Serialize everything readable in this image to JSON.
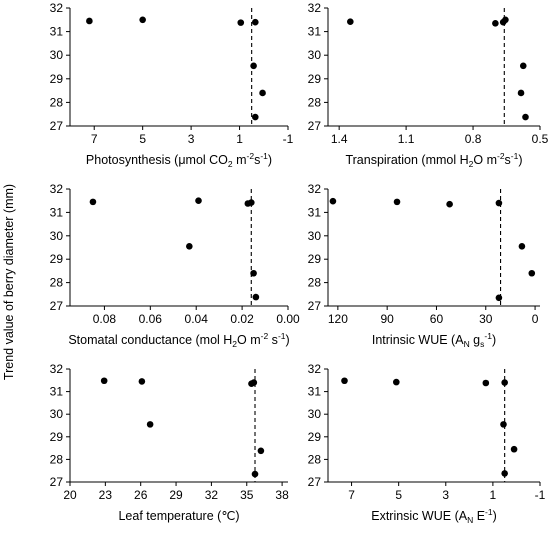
{
  "figure": {
    "ylabel": "Trend value of berry diameter (mm)"
  },
  "chart_data": [
    {
      "type": "scatter",
      "xlabel_parts": [
        [
          "Photosynthesis (μmol CO",
          ""
        ],
        [
          "2",
          "sub"
        ],
        [
          " m",
          ""
        ],
        [
          "-2",
          "sup"
        ],
        [
          "s",
          ""
        ],
        [
          "-1",
          "sup"
        ],
        [
          ")",
          ""
        ]
      ],
      "xticks": [
        "7",
        "5",
        "3",
        "1",
        "-1"
      ],
      "xlim": [
        8,
        -1
      ],
      "xtick_values": [
        7,
        5,
        3,
        1,
        -1
      ],
      "ylim": [
        27,
        32
      ],
      "yticks": [
        "27",
        "28",
        "29",
        "30",
        "31",
        "32"
      ],
      "dashed_x": 0.5,
      "points": [
        {
          "x": 7.2,
          "y": 31.45
        },
        {
          "x": 5.0,
          "y": 31.5
        },
        {
          "x": 0.95,
          "y": 31.38
        },
        {
          "x": 0.35,
          "y": 31.4
        },
        {
          "x": 0.42,
          "y": 29.55
        },
        {
          "x": 0.05,
          "y": 28.4
        },
        {
          "x": 0.35,
          "y": 27.38
        }
      ]
    },
    {
      "type": "scatter",
      "xlabel_parts": [
        [
          "Transpiration (mmol H",
          ""
        ],
        [
          "2",
          "sub"
        ],
        [
          "O m",
          ""
        ],
        [
          "-2",
          "sup"
        ],
        [
          "s",
          ""
        ],
        [
          "-1",
          "sup"
        ],
        [
          ")",
          ""
        ]
      ],
      "xticks": [
        "1.4",
        "1.1",
        "0.8",
        "0.5"
      ],
      "xlim": [
        1.45,
        0.5
      ],
      "xtick_values": [
        1.4,
        1.1,
        0.8,
        0.5
      ],
      "ylim": [
        27,
        32
      ],
      "yticks": [
        "27",
        "28",
        "29",
        "30",
        "31",
        "32"
      ],
      "dashed_x": 0.66,
      "points": [
        {
          "x": 1.35,
          "y": 31.42
        },
        {
          "x": 0.7,
          "y": 31.35
        },
        {
          "x": 0.665,
          "y": 31.4
        },
        {
          "x": 0.655,
          "y": 31.5
        },
        {
          "x": 0.575,
          "y": 29.55
        },
        {
          "x": 0.585,
          "y": 28.4
        },
        {
          "x": 0.565,
          "y": 27.38
        }
      ]
    },
    {
      "type": "scatter",
      "xlabel_parts": [
        [
          "Stomatal conductance (mol H",
          ""
        ],
        [
          "2",
          "sub"
        ],
        [
          "O m",
          ""
        ],
        [
          "-2",
          "sup"
        ],
        [
          " s",
          ""
        ],
        [
          "-1",
          "sup"
        ],
        [
          ")",
          ""
        ]
      ],
      "xticks": [
        "0.08",
        "0.06",
        "0.04",
        "0.02",
        "0.00"
      ],
      "xlim": [
        0.095,
        0.0
      ],
      "xtick_values": [
        0.08,
        0.06,
        0.04,
        0.02,
        0.0
      ],
      "ylim": [
        27,
        32
      ],
      "yticks": [
        "27",
        "28",
        "29",
        "30",
        "31",
        "32"
      ],
      "dashed_x": 0.016,
      "points": [
        {
          "x": 0.085,
          "y": 31.45
        },
        {
          "x": 0.039,
          "y": 31.5
        },
        {
          "x": 0.0175,
          "y": 31.38
        },
        {
          "x": 0.016,
          "y": 31.42
        },
        {
          "x": 0.043,
          "y": 29.55
        },
        {
          "x": 0.015,
          "y": 28.4
        },
        {
          "x": 0.014,
          "y": 27.38
        }
      ]
    },
    {
      "type": "scatter",
      "xlabel_parts": [
        [
          "Intrinsic WUE (A",
          ""
        ],
        [
          "N",
          "sub"
        ],
        [
          " g",
          ""
        ],
        [
          "s",
          "sub"
        ],
        [
          "",
          ""
        ],
        [
          "-1",
          "sup"
        ],
        [
          ")",
          ""
        ]
      ],
      "xticks": [
        "120",
        "90",
        "60",
        "30",
        "0"
      ],
      "xlim": [
        126,
        -3
      ],
      "xtick_values": [
        120,
        90,
        60,
        30,
        0
      ],
      "ylim": [
        27,
        32
      ],
      "yticks": [
        "27",
        "28",
        "29",
        "30",
        "31",
        "32"
      ],
      "dashed_x": 21,
      "points": [
        {
          "x": 123,
          "y": 31.48
        },
        {
          "x": 84,
          "y": 31.45
        },
        {
          "x": 52,
          "y": 31.35
        },
        {
          "x": 22,
          "y": 31.4
        },
        {
          "x": 8,
          "y": 29.55
        },
        {
          "x": 2,
          "y": 28.4
        },
        {
          "x": 22,
          "y": 27.35
        }
      ]
    },
    {
      "type": "scatter",
      "xlabel_parts": [
        [
          "Leaf temperature (",
          ""
        ],
        [
          "℃",
          ""
        ],
        [
          ")",
          ""
        ]
      ],
      "xticks": [
        "20",
        "23",
        "26",
        "29",
        "32",
        "35",
        "38"
      ],
      "xlim": [
        20,
        38.5
      ],
      "xtick_values": [
        20,
        23,
        26,
        29,
        32,
        35,
        38
      ],
      "ylim": [
        27,
        32
      ],
      "yticks": [
        "27",
        "28",
        "29",
        "30",
        "31",
        "32"
      ],
      "dashed_x": 35.7,
      "points": [
        {
          "x": 22.9,
          "y": 31.48
        },
        {
          "x": 26.1,
          "y": 31.45
        },
        {
          "x": 35.4,
          "y": 31.35
        },
        {
          "x": 35.6,
          "y": 31.4
        },
        {
          "x": 26.8,
          "y": 29.55
        },
        {
          "x": 36.2,
          "y": 28.38
        },
        {
          "x": 35.7,
          "y": 27.35
        }
      ]
    },
    {
      "type": "scatter",
      "xlabel_parts": [
        [
          "Extrinsic WUE (A",
          ""
        ],
        [
          "N",
          "sub"
        ],
        [
          " E",
          ""
        ],
        [
          "-1",
          "sup"
        ],
        [
          ")",
          ""
        ]
      ],
      "xticks": [
        "7",
        "5",
        "3",
        "1",
        "-1"
      ],
      "xlim": [
        8,
        -1
      ],
      "xtick_values": [
        7,
        5,
        3,
        1,
        -1
      ],
      "ylim": [
        27,
        32
      ],
      "yticks": [
        "27",
        "28",
        "29",
        "30",
        "31",
        "32"
      ],
      "dashed_x": 0.5,
      "points": [
        {
          "x": 7.3,
          "y": 31.48
        },
        {
          "x": 5.1,
          "y": 31.42
        },
        {
          "x": 1.3,
          "y": 31.38
        },
        {
          "x": 0.5,
          "y": 31.4
        },
        {
          "x": 0.55,
          "y": 29.55
        },
        {
          "x": 0.1,
          "y": 28.45
        },
        {
          "x": 0.5,
          "y": 27.38
        }
      ]
    }
  ]
}
